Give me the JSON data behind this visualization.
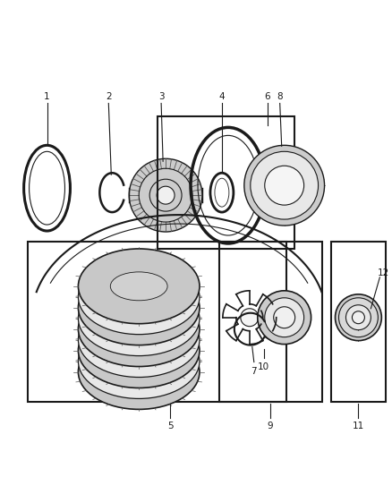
{
  "background_color": "#ffffff",
  "figsize": [
    4.38,
    5.33
  ],
  "dpi": 100,
  "col": "#1a1a1a",
  "gray": "#aaaaaa",
  "dgray": "#555555",
  "lgray": "#cccccc"
}
